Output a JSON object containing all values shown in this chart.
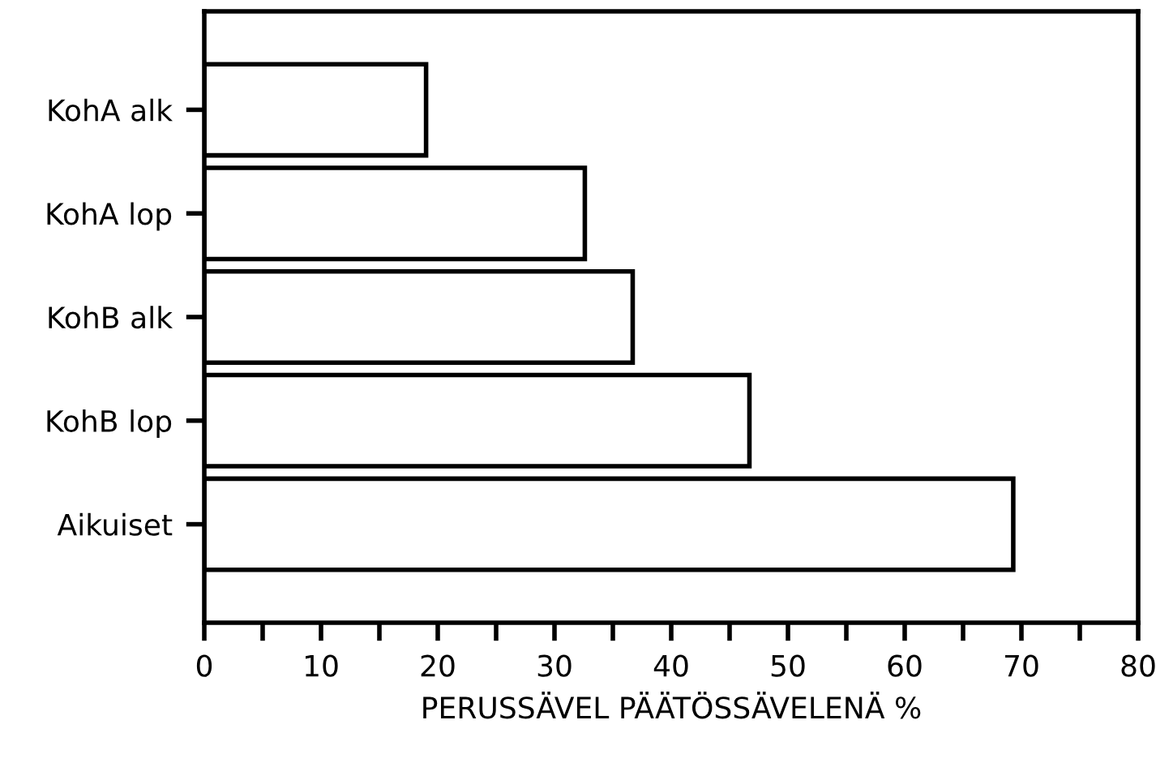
{
  "chart_data": {
    "type": "bar",
    "orientation": "horizontal",
    "xlabel": "PERUSSÄVEL PÄÄTÖSSÄVELENÄ %",
    "categories": [
      "KohA alk",
      "KohA lop",
      "KohB alk",
      "KohB lop",
      "Aikuiset"
    ],
    "values": [
      19,
      32.6,
      36.7,
      46.7,
      69.3
    ],
    "color": "#ffffff",
    "xlim": [
      0,
      80
    ],
    "xticks": [
      0,
      {
        "value": 5,
        "label": null
      },
      10,
      {
        "value": 15,
        "label": null
      },
      20,
      {
        "value": 25,
        "label": null
      },
      30,
      {
        "value": 35,
        "label": null
      },
      40,
      {
        "value": 45,
        "label": null
      },
      50,
      {
        "value": 55,
        "label": null
      },
      60,
      {
        "value": 65,
        "label": null
      },
      70,
      {
        "value": 75,
        "label": null
      },
      80
    ],
    "grid": false,
    "legend": false
  }
}
